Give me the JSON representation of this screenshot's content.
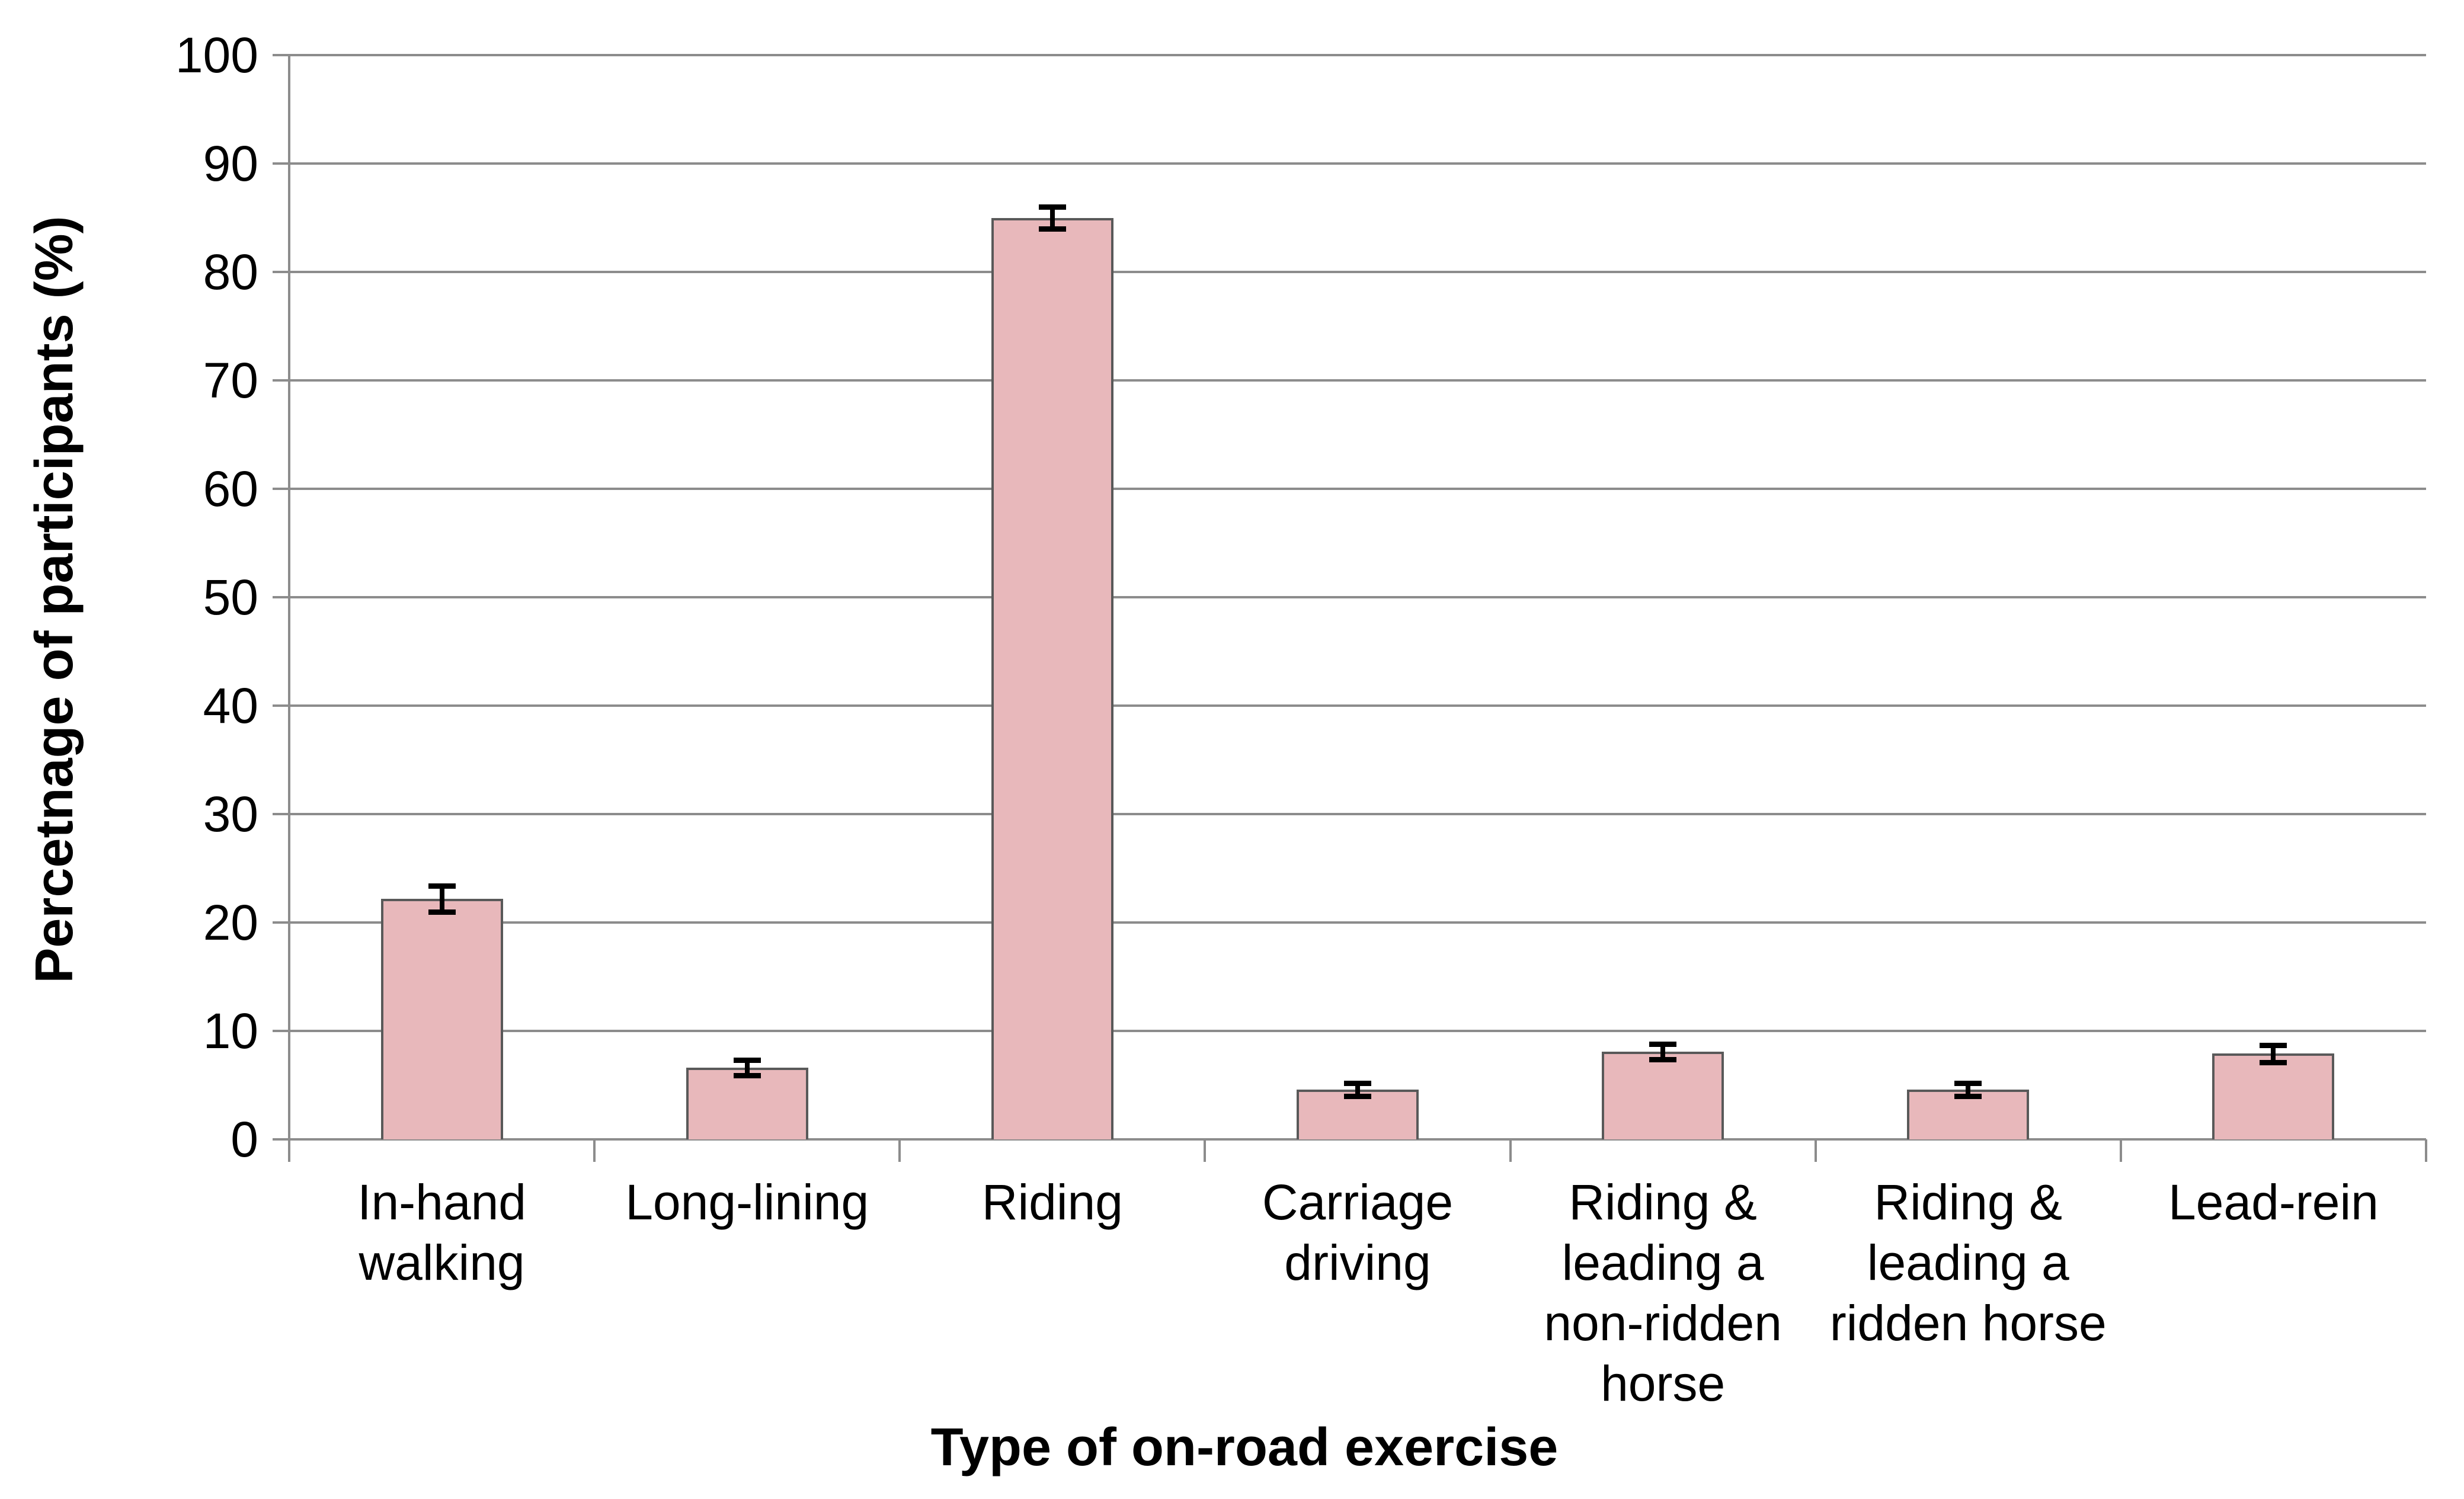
{
  "chart_data": {
    "type": "bar",
    "title": "",
    "xlabel": "Type of on-road exercise",
    "ylabel": "Percetnage of participants (%)",
    "ylim": [
      0,
      100
    ],
    "ytick_step": 10,
    "yticks": [
      0,
      10,
      20,
      30,
      40,
      50,
      60,
      70,
      80,
      90,
      100
    ],
    "grid": true,
    "legend": null,
    "categories": [
      "In-hand walking",
      "Long-lining",
      "Riding",
      "Carriage driving",
      "Riding & leading a non-ridden horse",
      "Riding & leading a ridden horse",
      "Lead-rein"
    ],
    "category_label_lines": [
      [
        "In-hand",
        "walking"
      ],
      [
        "Long-lining"
      ],
      [
        "Riding"
      ],
      [
        "Carriage",
        "driving"
      ],
      [
        "Riding &",
        "leading a",
        "non-ridden",
        "horse"
      ],
      [
        "Riding &",
        "leading a",
        "ridden horse"
      ],
      [
        "Lead-rein"
      ]
    ],
    "values": [
      22.2,
      6.6,
      85.0,
      4.6,
      8.1,
      4.6,
      7.9
    ],
    "errors": [
      1.2,
      0.7,
      1.0,
      0.6,
      0.7,
      0.6,
      0.8
    ],
    "colors": {
      "bar_fill": "#e8b8bb",
      "bar_border": "#595959",
      "axis": "#8c8c8c",
      "gridline": "#8c8c8c",
      "error_bar": "#000000",
      "text": "#000000",
      "background": "#ffffff"
    }
  }
}
